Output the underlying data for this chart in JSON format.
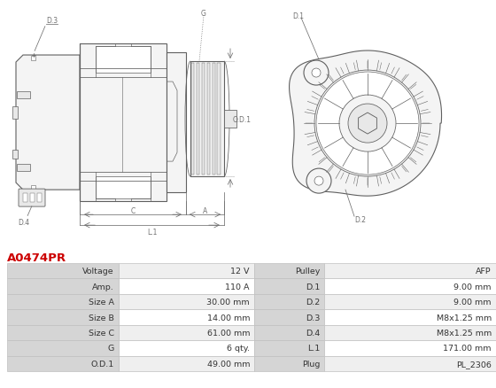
{
  "title": "A0474PR",
  "title_color": "#cc0000",
  "table_data": [
    [
      "Voltage",
      "12 V",
      "Pulley",
      "AFP"
    ],
    [
      "Amp.",
      "110 A",
      "D.1",
      "9.00 mm"
    ],
    [
      "Size A",
      "30.00 mm",
      "D.2",
      "9.00 mm"
    ],
    [
      "Size B",
      "14.00 mm",
      "D.3",
      "M8x1.25 mm"
    ],
    [
      "Size C",
      "61.00 mm",
      "D.4",
      "M8x1.25 mm"
    ],
    [
      "G",
      "6 qty.",
      "L.1",
      "171.00 mm"
    ],
    [
      "O.D.1",
      "49.00 mm",
      "Plug",
      "PL_2306"
    ]
  ],
  "lc": "#606060",
  "dim_color": "#707070",
  "fill_light": "#f4f4f4",
  "fill_mid": "#e8e8e8",
  "fill_dark": "#d8d8d8",
  "header_bg": "#d5d5d5",
  "row_bg_odd": "#efefef",
  "row_bg_even": "#ffffff",
  "border_color": "#c0c0c0",
  "text_color": "#333333",
  "background_color": "#ffffff",
  "fig_width": 5.6,
  "fig_height": 4.39,
  "dpi": 100
}
